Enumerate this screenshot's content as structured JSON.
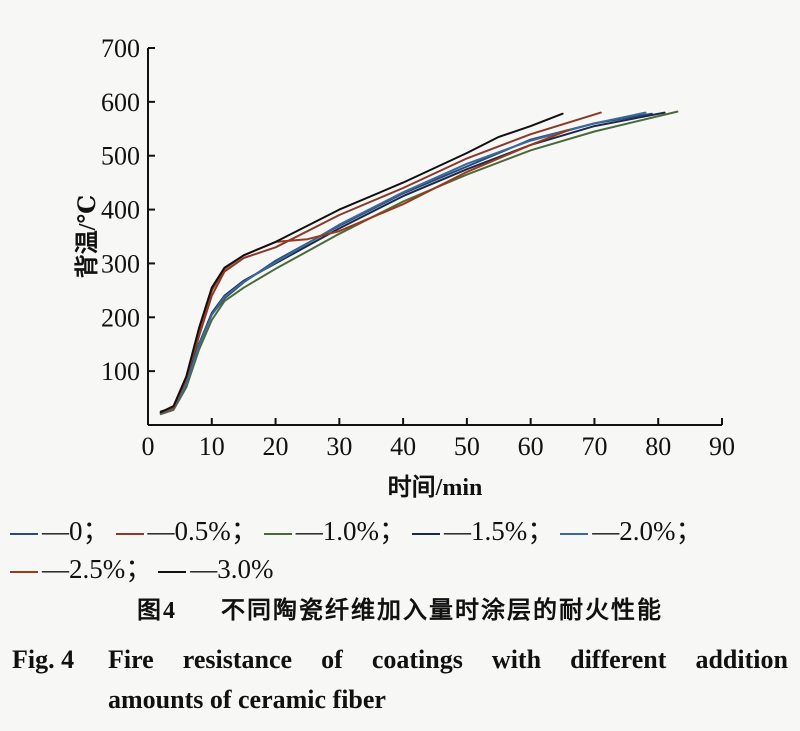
{
  "chart_data": {
    "type": "line",
    "xlabel": "时间/min",
    "ylabel": "背温/℃",
    "xlim": [
      0,
      90
    ],
    "ylim": [
      0,
      700
    ],
    "xticks": [
      0,
      10,
      20,
      30,
      40,
      50,
      60,
      70,
      80,
      90
    ],
    "yticks": [
      100,
      200,
      300,
      400,
      500,
      600,
      700
    ],
    "grid": false,
    "legend_position": "bottom",
    "series": [
      {
        "name": "0",
        "legend_label": "—0；",
        "color": "#2b4a7a",
        "x": [
          2,
          4,
          6,
          8,
          10,
          12,
          15,
          20,
          30,
          40,
          50,
          60,
          70,
          79
        ],
        "y": [
          25,
          32,
          75,
          150,
          205,
          235,
          265,
          305,
          370,
          430,
          480,
          530,
          560,
          578
        ]
      },
      {
        "name": "0.5%",
        "legend_label": "—0.5%；",
        "color": "#8a3a2a",
        "x": [
          2,
          4,
          6,
          8,
          10,
          12,
          15,
          20,
          30,
          40,
          50,
          60,
          71
        ],
        "y": [
          22,
          30,
          80,
          165,
          240,
          285,
          310,
          330,
          390,
          440,
          495,
          540,
          580
        ]
      },
      {
        "name": "1.0%",
        "legend_label": "—1.0%；",
        "color": "#4a6a3a",
        "x": [
          2,
          4,
          6,
          8,
          10,
          12,
          15,
          20,
          30,
          40,
          50,
          60,
          70,
          83
        ],
        "y": [
          20,
          28,
          70,
          140,
          195,
          230,
          255,
          290,
          355,
          415,
          465,
          510,
          545,
          582
        ]
      },
      {
        "name": "1.5%",
        "legend_label": "—1.5%；",
        "color": "#1a2a4a",
        "x": [
          2,
          4,
          6,
          8,
          10,
          12,
          15,
          20,
          30,
          40,
          50,
          60,
          70,
          81
        ],
        "y": [
          24,
          32,
          78,
          150,
          208,
          240,
          268,
          300,
          365,
          425,
          475,
          520,
          555,
          580
        ]
      },
      {
        "name": "2.0%",
        "legend_label": "—2.0%；",
        "color": "#3a6a9a",
        "x": [
          2,
          4,
          6,
          8,
          10,
          12,
          15,
          20,
          30,
          40,
          50,
          60,
          70,
          78
        ],
        "y": [
          22,
          30,
          76,
          148,
          205,
          238,
          266,
          302,
          372,
          432,
          485,
          528,
          560,
          580
        ]
      },
      {
        "name": "2.5%",
        "legend_label": "—2.5%；",
        "color": "#9a3a1a",
        "x": [
          2,
          4,
          6,
          8,
          10,
          12,
          15,
          20,
          25,
          30,
          40,
          50,
          60,
          66
        ],
        "y": [
          23,
          32,
          85,
          175,
          250,
          290,
          315,
          340,
          345,
          360,
          410,
          470,
          520,
          548
        ]
      },
      {
        "name": "3.0%",
        "legend_label": "—3.0%",
        "color": "#111111",
        "x": [
          2,
          4,
          6,
          8,
          10,
          12,
          15,
          20,
          30,
          40,
          50,
          55,
          60,
          65
        ],
        "y": [
          24,
          35,
          90,
          180,
          255,
          292,
          315,
          340,
          400,
          450,
          505,
          535,
          555,
          578
        ]
      }
    ]
  },
  "caption_cn": {
    "number": "图4",
    "text": "不同陶瓷纤维加入量时涂层的耐火性能"
  },
  "caption_en": {
    "number": "Fig. 4",
    "line1_words": [
      "Fire",
      "resistance",
      "of",
      "coatings",
      "with",
      "different",
      "addition"
    ],
    "line2": "amounts of ceramic fiber"
  }
}
